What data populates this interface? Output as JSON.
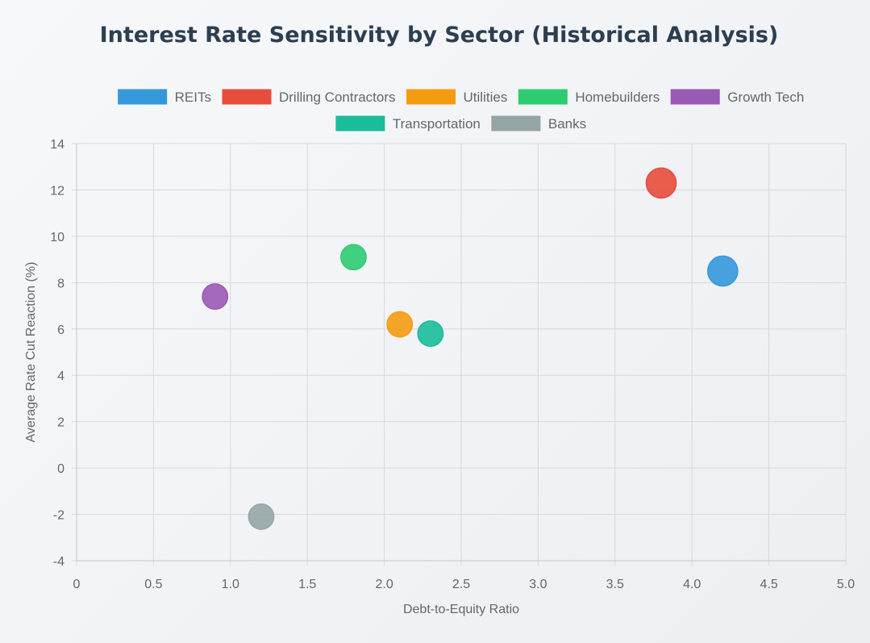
{
  "chart_data": {
    "type": "scatter",
    "title": "Interest Rate Sensitivity by Sector (Historical Analysis)",
    "xlabel": "Debt-to-Equity Ratio",
    "ylabel": "Average Rate Cut Reaction (%)",
    "xlim": [
      0,
      5.0
    ],
    "ylim": [
      -4,
      14
    ],
    "xticks": [
      "0",
      "0.5",
      "1.0",
      "1.5",
      "2.0",
      "2.5",
      "3.0",
      "3.5",
      "4.0",
      "4.5",
      "5.0"
    ],
    "yticks": [
      "-4",
      "-2",
      "0",
      "2",
      "4",
      "6",
      "8",
      "10",
      "12",
      "14"
    ],
    "grid": true,
    "legend_position": "top",
    "series": [
      {
        "name": "REITs",
        "color": "#3498db",
        "x": 4.2,
        "y": 8.5,
        "size": 3.2
      },
      {
        "name": "Drilling Contractors",
        "color": "#e74c3c",
        "x": 3.8,
        "y": 12.3,
        "size": 3.2
      },
      {
        "name": "Utilities",
        "color": "#f39c12",
        "x": 2.1,
        "y": 6.2,
        "size": 2.7
      },
      {
        "name": "Homebuilders",
        "color": "#2ecc71",
        "x": 1.8,
        "y": 9.1,
        "size": 2.7
      },
      {
        "name": "Growth Tech",
        "color": "#9b59b6",
        "x": 0.9,
        "y": 7.4,
        "size": 2.7
      },
      {
        "name": "Transportation",
        "color": "#1abc9c",
        "x": 2.3,
        "y": 5.8,
        "size": 2.7
      },
      {
        "name": "Banks",
        "color": "#95a5a6",
        "x": 1.2,
        "y": -2.1,
        "size": 2.7
      }
    ]
  }
}
